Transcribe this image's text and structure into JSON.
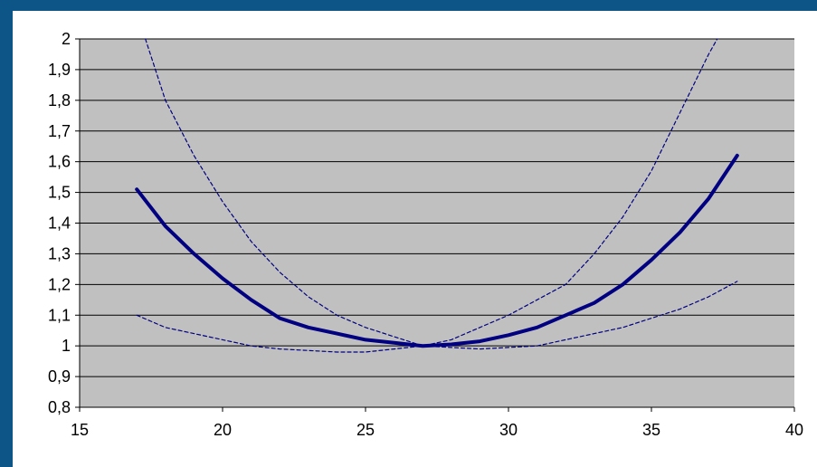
{
  "chart_data": {
    "type": "line",
    "title": "",
    "xlabel": "",
    "ylabel": "",
    "xlim": [
      15,
      40
    ],
    "ylim": [
      0.8,
      2
    ],
    "x_ticks": [
      "15",
      "20",
      "25",
      "30",
      "35",
      "40"
    ],
    "y_ticks": [
      "0,8",
      "0,9",
      "1",
      "1,1",
      "1,2",
      "1,3",
      "1,4",
      "1,5",
      "1,6",
      "1,7",
      "1,8",
      "1,9",
      "2"
    ],
    "grid": true,
    "legend": "none",
    "colors": {
      "plot_bg": "#c0c0c0",
      "grid": "#000000",
      "series": "#000080",
      "page_bg": "#0d5586"
    },
    "series": [
      {
        "style": "solid-thick",
        "x": [
          17,
          18,
          19,
          20,
          21,
          22,
          23,
          24,
          25,
          26,
          27,
          28,
          29,
          30,
          31,
          32,
          33,
          34,
          35,
          36,
          37,
          38
        ],
        "y": [
          1.51,
          1.39,
          1.3,
          1.22,
          1.15,
          1.09,
          1.06,
          1.04,
          1.02,
          1.01,
          1.0,
          1.005,
          1.015,
          1.035,
          1.06,
          1.1,
          1.14,
          1.2,
          1.28,
          1.37,
          1.48,
          1.62
        ]
      },
      {
        "style": "dashed-upper",
        "x": [
          17.3,
          18,
          19,
          20,
          21,
          22,
          23,
          24,
          25,
          26,
          27,
          28,
          29,
          30,
          31,
          32,
          33,
          34,
          35,
          36,
          37,
          37.3
        ],
        "y": [
          2.0,
          1.8,
          1.62,
          1.47,
          1.34,
          1.24,
          1.16,
          1.1,
          1.06,
          1.03,
          1.0,
          1.02,
          1.06,
          1.1,
          1.15,
          1.2,
          1.3,
          1.42,
          1.57,
          1.76,
          1.95,
          2.0
        ]
      },
      {
        "style": "dashed-lower",
        "x": [
          17,
          18,
          19,
          20,
          21,
          22,
          23,
          24,
          25,
          26,
          27,
          28,
          29,
          30,
          31,
          32,
          33,
          34,
          35,
          36,
          37,
          38
        ],
        "y": [
          1.1,
          1.06,
          1.04,
          1.02,
          1.0,
          0.99,
          0.985,
          0.98,
          0.98,
          0.99,
          1.0,
          0.995,
          0.99,
          0.995,
          1.0,
          1.02,
          1.04,
          1.06,
          1.09,
          1.12,
          1.16,
          1.21
        ]
      }
    ]
  }
}
